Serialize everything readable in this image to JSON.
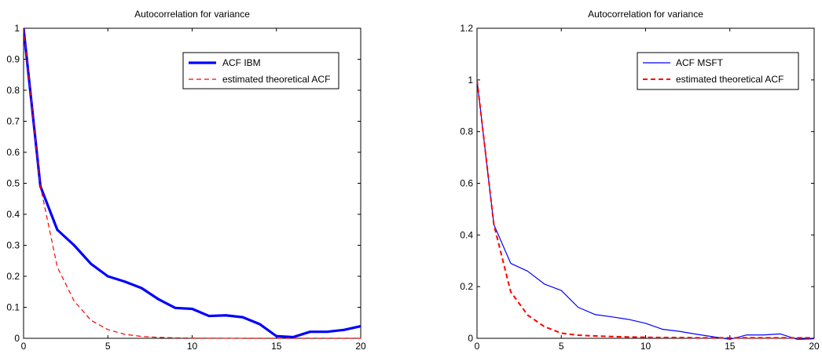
{
  "chart_data": [
    {
      "type": "line",
      "title": "Autocorrelation for variance",
      "xlim": [
        0,
        20
      ],
      "ylim": [
        0,
        1
      ],
      "xticks": [
        0,
        5,
        10,
        15,
        20
      ],
      "yticks": [
        0,
        0.1,
        0.2,
        0.3,
        0.4,
        0.5,
        0.6,
        0.7,
        0.8,
        0.9,
        1
      ],
      "ytick_labels": [
        "0",
        "0.1",
        "0.2",
        "0.3",
        "0.4",
        "0.5",
        "0.6",
        "0.7",
        "0.8",
        "0.9",
        "1"
      ],
      "grid": false,
      "legend_position": "top-right",
      "x": [
        0,
        1,
        2,
        3,
        4,
        5,
        6,
        7,
        8,
        9,
        10,
        11,
        12,
        13,
        14,
        15,
        16,
        17,
        18,
        19,
        20
      ],
      "series": [
        {
          "name": "ACF IBM",
          "color": "#0000ff",
          "style": "solid",
          "width": "thick",
          "values": [
            1.0,
            0.49,
            0.35,
            0.3,
            0.24,
            0.2,
            0.183,
            0.162,
            0.126,
            0.098,
            0.095,
            0.072,
            0.074,
            0.068,
            0.046,
            0.007,
            0.004,
            0.021,
            0.021,
            0.027,
            0.039
          ]
        },
        {
          "name": "estimated theoretical ACF",
          "color": "#ff0000",
          "style": "dashed",
          "width": "thin",
          "values": [
            1.0,
            0.49,
            0.23,
            0.12,
            0.058,
            0.028,
            0.013,
            0.006,
            0.003,
            0.0014,
            0.0007,
            0.0003,
            0.0002,
            0.0001,
            0,
            0,
            0,
            0,
            0,
            0,
            0
          ]
        }
      ]
    },
    {
      "type": "line",
      "title": "Autocorrelation for variance",
      "xlim": [
        0,
        20
      ],
      "ylim": [
        0,
        1.2
      ],
      "xticks": [
        0,
        5,
        10,
        15,
        20
      ],
      "yticks": [
        0,
        0.2,
        0.4,
        0.6,
        0.8,
        1,
        1.2
      ],
      "ytick_labels": [
        "0",
        "0.2",
        "0.4",
        "0.6",
        "0.8",
        "1",
        "1.2"
      ],
      "grid": false,
      "legend_position": "top-right",
      "x": [
        0,
        1,
        2,
        3,
        4,
        5,
        6,
        7,
        8,
        9,
        10,
        11,
        12,
        13,
        14,
        15,
        16,
        17,
        18,
        19,
        20
      ],
      "series": [
        {
          "name": "ACF MSFT",
          "color": "#0000ff",
          "style": "solid",
          "width": "thin",
          "values": [
            1.0,
            0.44,
            0.29,
            0.26,
            0.21,
            0.185,
            0.12,
            0.092,
            0.083,
            0.073,
            0.058,
            0.035,
            0.027,
            0.016,
            0.006,
            -0.004,
            0.013,
            0.013,
            0.017,
            -0.004,
            -0.002
          ]
        },
        {
          "name": "estimated theoretical ACF",
          "color": "#ff0000",
          "style": "dashed",
          "width": "medium",
          "values": [
            1.0,
            0.44,
            0.18,
            0.09,
            0.045,
            0.02,
            0.012,
            0.009,
            0.007,
            0.005,
            0.004,
            0.003,
            0.003,
            0.002,
            0.002,
            0.002,
            0.002,
            0.002,
            0.002,
            0.002,
            0.002
          ]
        }
      ]
    }
  ]
}
